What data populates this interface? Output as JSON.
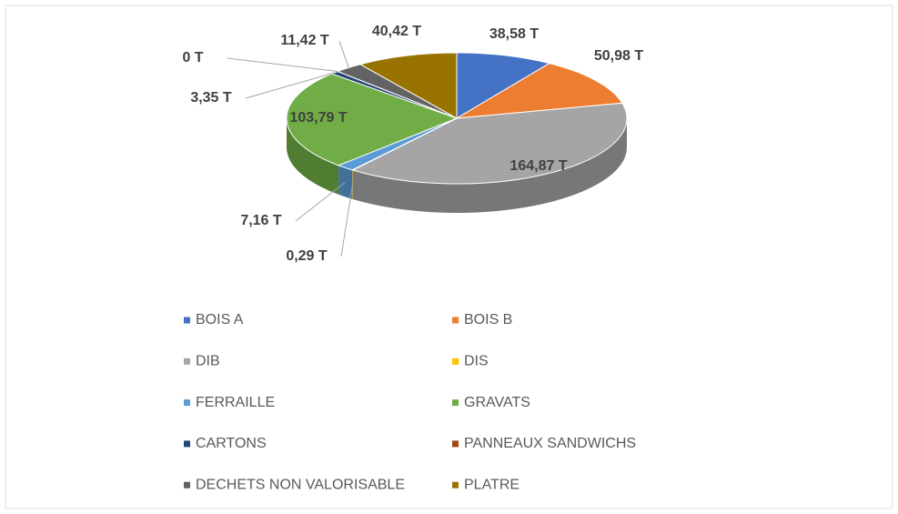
{
  "chart_data": {
    "type": "pie3d",
    "categories": [
      "BOIS A",
      "BOIS B",
      "DIB",
      "DIS",
      "FERRAILLE",
      "GRAVATS",
      "CARTONS",
      "PANNEAUX SANDWICHS",
      "DECHETS NON VALORISABLE",
      "PLATRE"
    ],
    "values": [
      38.58,
      50.98,
      164.87,
      0.29,
      7.16,
      103.79,
      3.35,
      0,
      11.42,
      40.42
    ],
    "value_labels": [
      "38,58 T",
      "50,98 T",
      "164,87 T",
      "0,29 T",
      "7,16 T",
      "103,79 T",
      "3,35 T",
      "0 T",
      "11,42 T",
      "40,42 T"
    ],
    "colors": [
      "#4472c4",
      "#ed7d31",
      "#a5a5a5",
      "#ffc000",
      "#5b9bd5",
      "#70ad47",
      "#264478",
      "#9e480e",
      "#636363",
      "#997300"
    ],
    "legend": "bottom"
  }
}
